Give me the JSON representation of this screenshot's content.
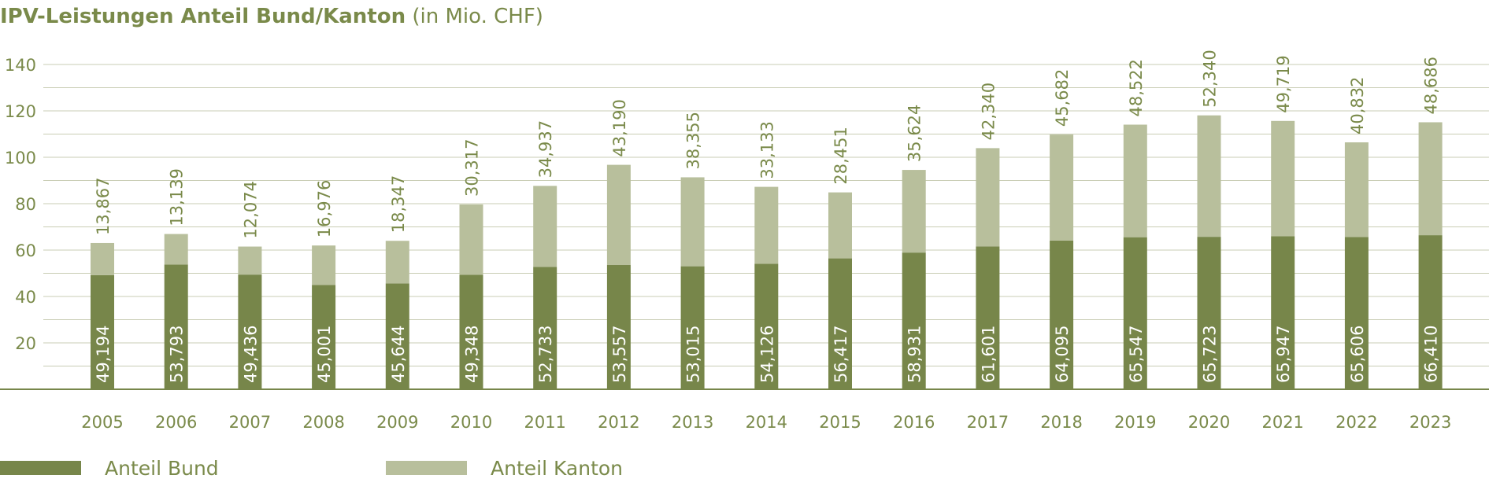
{
  "chart_data": {
    "type": "bar",
    "stacked": true,
    "title": "IPV-Leistungen Anteil Bund/Kanton",
    "title_unit": "(in Mio. CHF)",
    "categories": [
      "2005",
      "2006",
      "2007",
      "2008",
      "2009",
      "2010",
      "2011",
      "2012",
      "2013",
      "2014",
      "2015",
      "2016",
      "2017",
      "2018",
      "2019",
      "2020",
      "2021",
      "2022",
      "2023"
    ],
    "series": [
      {
        "name": "Anteil Bund",
        "color": "#77864a",
        "values": [
          49.194,
          53.793,
          49.436,
          45.001,
          45.644,
          49.348,
          52.733,
          53.557,
          53.015,
          54.126,
          56.417,
          58.931,
          61.601,
          64.095,
          65.547,
          65.723,
          65.947,
          65.606,
          66.41
        ],
        "labels": [
          "49,194",
          "53,793",
          "49,436",
          "45,001",
          "45,644",
          "49,348",
          "52,733",
          "53,557",
          "53,015",
          "54,126",
          "56,417",
          "58,931",
          "61,601",
          "64,095",
          "65,547",
          "65,723",
          "65,947",
          "65,606",
          "66,410"
        ]
      },
      {
        "name": "Anteil Kanton",
        "color": "#b8bf9c",
        "values": [
          13.867,
          13.139,
          12.074,
          16.976,
          18.347,
          30.317,
          34.937,
          43.19,
          38.355,
          33.133,
          28.451,
          35.624,
          42.34,
          45.682,
          48.522,
          52.34,
          49.719,
          40.832,
          48.686
        ],
        "labels": [
          "13,867",
          "13,139",
          "12,074",
          "16,976",
          "18,347",
          "30,317",
          "34,937",
          "43,190",
          "38,355",
          "33,133",
          "28,451",
          "35,624",
          "42,340",
          "45,682",
          "48,522",
          "52,340",
          "49,719",
          "40,832",
          "48,686"
        ]
      }
    ],
    "y_ticks": [
      20,
      40,
      60,
      80,
      100,
      120,
      140
    ],
    "ylim": [
      0,
      140
    ],
    "grid": true,
    "legend": "bottom-left",
    "colors": {
      "text": "#7a8a4a",
      "grid": "#c9cdb4",
      "axis": "#77864a"
    }
  }
}
